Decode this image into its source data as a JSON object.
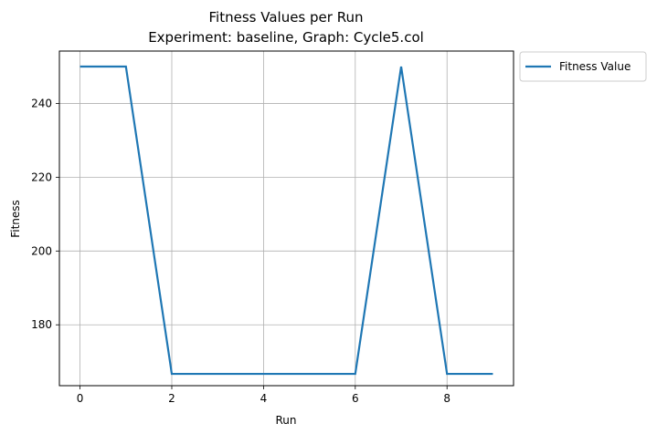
{
  "chart_data": {
    "type": "line",
    "title": "Fitness Values per Run",
    "subtitle": "Experiment: baseline, Graph: Cycle5.col",
    "xlabel": "Run",
    "ylabel": "Fitness",
    "xlim": [
      -0.45,
      9.45
    ],
    "ylim": [
      163.5,
      254.2
    ],
    "xticks": [
      0,
      2,
      4,
      6,
      8
    ],
    "yticks": [
      180,
      200,
      220,
      240
    ],
    "grid": true,
    "legend_position": "upper-left-outside",
    "series": [
      {
        "name": "Fitness Value",
        "color": "#1f77b4",
        "x": [
          0,
          1,
          2,
          3,
          4,
          5,
          6,
          7,
          8,
          9
        ],
        "y": [
          250,
          250,
          166.7,
          166.7,
          166.7,
          166.7,
          166.7,
          250,
          166.7,
          166.7
        ]
      }
    ]
  }
}
